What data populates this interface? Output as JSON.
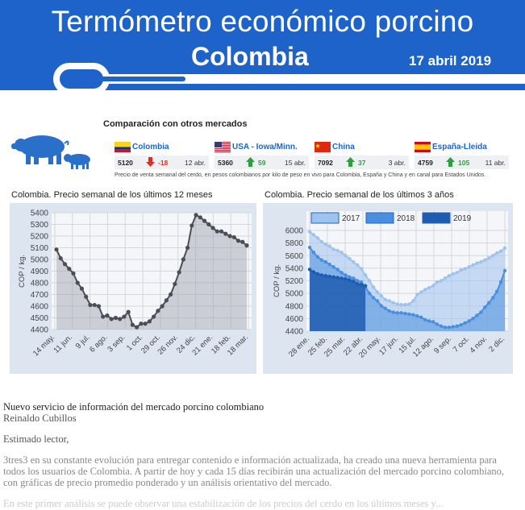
{
  "header": {
    "title": "Termómetro económico porcino",
    "country": "Colombia",
    "date": "17 abril 2019"
  },
  "comparison": {
    "title": "Comparación con otros mercados",
    "markets": [
      {
        "name": "Colombia",
        "price": "5120",
        "change": "-18",
        "direction": "down",
        "date": "12 abr.",
        "flag": "colombia"
      },
      {
        "name": "USA - Iowa/Minn.",
        "price": "5360",
        "change": "59",
        "direction": "up",
        "date": "15 abr.",
        "flag": "usa"
      },
      {
        "name": "China",
        "price": "7092",
        "change": "37",
        "direction": "up",
        "date": "3 abr.",
        "flag": "china"
      },
      {
        "name": "España-Lleida",
        "price": "4759",
        "change": "105",
        "direction": "up",
        "date": "11 abr.",
        "flag": "spain"
      }
    ],
    "note": "Precio de venta semanal del cerdo, en pesos colombianos por kilo de peso en vivo para Colombia, España y China y en canal para Estados Unidos."
  },
  "colors": {
    "brand": "#1d63c9",
    "down": "#d93025",
    "up": "#2e9e3e",
    "s2017": "#9fc3ec",
    "s2018": "#4a8fde",
    "s2019": "#1f5cb0"
  },
  "chart_data": [
    {
      "type": "line",
      "title": "Colombia. Precio semanal de los últimos 12 meses",
      "ylabel": "COP / kg.",
      "ylim": [
        4400,
        5400
      ],
      "yticks": [
        4400,
        4500,
        4600,
        4700,
        4800,
        4900,
        5000,
        5100,
        5200,
        5300,
        5400
      ],
      "xticks": [
        "14 may.",
        "11 jun.",
        "9 jul.",
        "6 ago.",
        "3 sep.",
        "1 oct.",
        "29 oct.",
        "26 nov.",
        "24 dic.",
        "21 ene.",
        "18 feb.",
        "18 mar."
      ],
      "grid": true,
      "series": [
        {
          "values": [
            5085,
            5010,
            4960,
            4920,
            4880,
            4800,
            4750,
            4680,
            4610,
            4610,
            4600,
            4510,
            4520,
            4490,
            4500,
            4490,
            4510,
            4550,
            4440,
            4420,
            4450,
            4450,
            4470,
            4510,
            4560,
            4600,
            4650,
            4700,
            4790,
            4890,
            5000,
            5100,
            5290,
            5380,
            5360,
            5330,
            5300,
            5270,
            5240,
            5240,
            5220,
            5200,
            5190,
            5160,
            5150,
            5120
          ]
        }
      ]
    },
    {
      "type": "area",
      "title": "Colombia. Precio semanal de los últimos 3 años",
      "ylabel": "COP / kg.",
      "ylim": [
        4400,
        6000
      ],
      "yticks": [
        4400,
        4600,
        4800,
        5000,
        5200,
        5400,
        5600,
        5800,
        6000
      ],
      "xticks": [
        "28 ene.",
        "25 feb.",
        "25 mar.",
        "22 abr.",
        "20 may.",
        "17 jun.",
        "15 jul.",
        "12 ago.",
        "9 sep.",
        "7 oct.",
        "4 nov.",
        "2 dic."
      ],
      "legend": "top",
      "grid": true,
      "series": [
        {
          "name": "2017",
          "values": [
            5980,
            5930,
            5880,
            5820,
            5780,
            5750,
            5700,
            5680,
            5650,
            5600,
            5550,
            5500,
            5450,
            5390,
            5290,
            5200,
            5100,
            5020,
            4960,
            4900,
            4880,
            4850,
            4830,
            4820,
            4820,
            4830,
            4880,
            4980,
            5020,
            5060,
            5090,
            5120,
            5180,
            5200,
            5240,
            5280,
            5310,
            5330,
            5370,
            5390,
            5420,
            5450,
            5480,
            5500,
            5530,
            5560,
            5600,
            5640,
            5670,
            5720
          ]
        },
        {
          "name": "2018",
          "values": [
            5730,
            5650,
            5580,
            5530,
            5500,
            5460,
            5420,
            5380,
            5330,
            5290,
            5260,
            5240,
            5200,
            5180,
            5100,
            5000,
            4930,
            4880,
            4800,
            4760,
            4720,
            4700,
            4690,
            4690,
            4680,
            4670,
            4660,
            4640,
            4620,
            4580,
            4560,
            4550,
            4510,
            4480,
            4460,
            4460,
            4470,
            4480,
            4500,
            4530,
            4560,
            4600,
            4650,
            4700,
            4780,
            4850,
            4930,
            5030,
            5180,
            5360
          ]
        },
        {
          "name": "2019",
          "values": [
            5380,
            5340,
            5310,
            5290,
            5280,
            5270,
            5260,
            5250,
            5240,
            5230,
            5210,
            5190,
            5150,
            5140,
            5120
          ]
        }
      ]
    }
  ],
  "article": {
    "title": "Nuevo servicio de información del mercado porcino colombiano",
    "author": "Reinaldo Cubillos",
    "greeting": "Estimado lector,",
    "body": "3tres3 en su constante evolución para entregar contenido e información actualizada, ha creado una nueva herramienta para todos los usuarios de Colombia. A partir de hoy y cada 15 días recibirán una actualización del mercado porcino colombiano, con gráficas de precio promedio ponderado y un análisis orientativo del mercado.",
    "faded": "En este primer análisis se puede observar una estabilización de los precios del cerdo en los últimos meses y..."
  }
}
